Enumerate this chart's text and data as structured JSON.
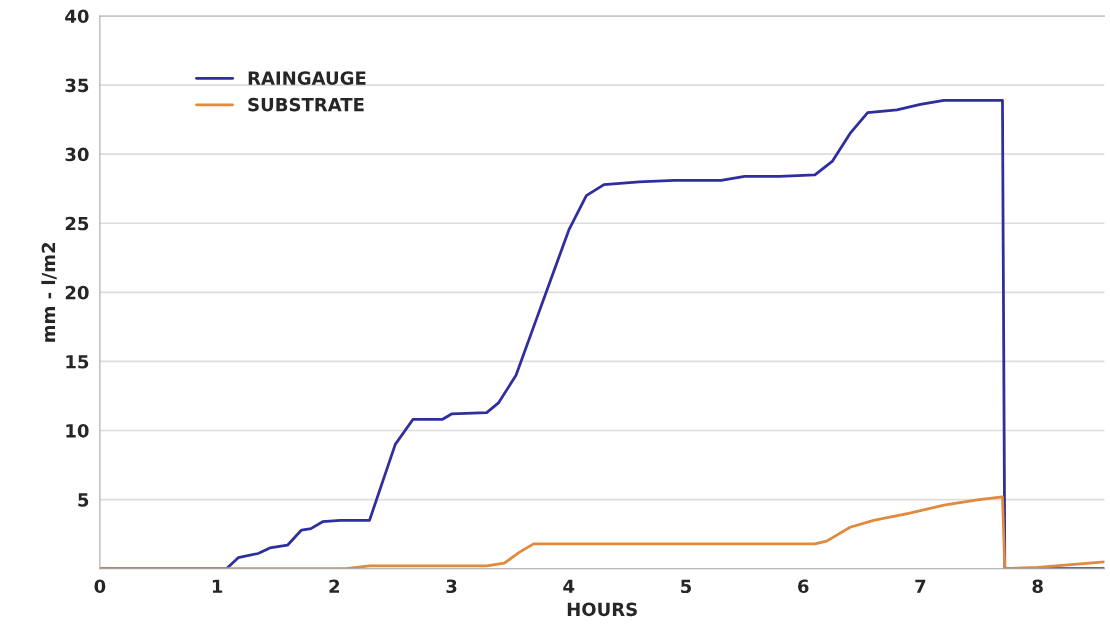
{
  "chart_data": {
    "type": "line",
    "xlabel": "HOURS",
    "ylabel": "mm - l/m2",
    "xlim": [
      0,
      8.57
    ],
    "xticks": [
      0,
      1,
      2,
      3,
      4,
      5,
      6,
      7,
      8
    ],
    "ylim": [
      0,
      40
    ],
    "yticks": [
      {
        "value": 0,
        "label": null
      },
      5,
      10,
      15,
      20,
      25,
      30,
      35,
      40
    ],
    "grid": "y",
    "legend": "top left",
    "marker": "none",
    "line_style": "solid",
    "series": [
      {
        "name": "RAINGAUGE",
        "color": "#2e2e9e",
        "x": [
          0,
          1.08,
          1.18,
          1.35,
          1.45,
          1.6,
          1.72,
          1.8,
          1.9,
          2.05,
          2.3,
          2.42,
          2.52,
          2.67,
          2.92,
          3.0,
          3.3,
          3.4,
          3.55,
          3.7,
          3.85,
          4.0,
          4.15,
          4.3,
          4.6,
          4.9,
          5.3,
          5.5,
          5.8,
          6.1,
          6.25,
          6.4,
          6.55,
          6.8,
          7.0,
          7.2,
          7.7,
          7.72,
          8.57
        ],
        "values": [
          0,
          0,
          0.8,
          1.1,
          1.5,
          1.7,
          2.8,
          2.9,
          3.4,
          3.5,
          3.5,
          6.5,
          9,
          10.8,
          10.8,
          11.2,
          11.3,
          12,
          14,
          17.5,
          21,
          24.5,
          27,
          27.8,
          28,
          28.1,
          28.1,
          28.4,
          28.4,
          28.5,
          29.5,
          31.5,
          33,
          33.2,
          33.6,
          33.9,
          33.9,
          0,
          0
        ]
      },
      {
        "name": "SUBSTRATE",
        "color": "#e08a3c",
        "x": [
          0,
          2.1,
          2.3,
          3.3,
          3.45,
          3.58,
          3.7,
          6.1,
          6.2,
          6.4,
          6.6,
          6.9,
          7.2,
          7.5,
          7.7,
          7.72,
          8.0,
          8.57
        ],
        "values": [
          0,
          0,
          0.2,
          0.2,
          0.4,
          1.2,
          1.8,
          1.8,
          2,
          3,
          3.5,
          4,
          4.6,
          5,
          5.2,
          0,
          0.1,
          0.5
        ]
      }
    ]
  }
}
